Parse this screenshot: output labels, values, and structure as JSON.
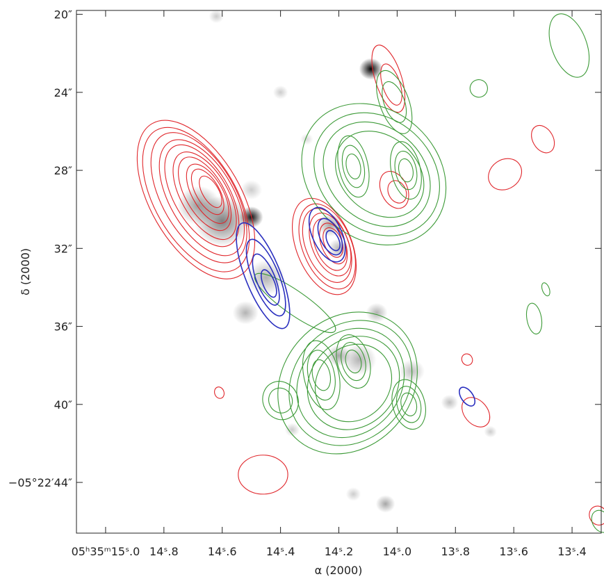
{
  "chart_data": {
    "type": "contour",
    "xlabel": "α (2000)",
    "ylabel": "δ (2000)",
    "x_axis": {
      "unit": "seconds of RA",
      "range": [
        15.1,
        13.3
      ],
      "ticks": [
        {
          "value": 15.0,
          "label": "05ʰ35ᵐ15ˢ.0"
        },
        {
          "value": 14.8,
          "label": "14ˢ.8"
        },
        {
          "value": 14.6,
          "label": "14ˢ.6"
        },
        {
          "value": 14.4,
          "label": "14ˢ.4"
        },
        {
          "value": 14.2,
          "label": "14ˢ.2"
        },
        {
          "value": 14.0,
          "label": "14ˢ.0"
        },
        {
          "value": 13.8,
          "label": "13ˢ.8"
        },
        {
          "value": 13.6,
          "label": "13ˢ.6"
        },
        {
          "value": 13.4,
          "label": "13ˢ.4"
        }
      ]
    },
    "y_axis": {
      "unit": "arcsec offset in Dec",
      "range": [
        46.6,
        19.8
      ],
      "ticks": [
        {
          "value": 20,
          "label": "20″"
        },
        {
          "value": 24,
          "label": "24″"
        },
        {
          "value": 28,
          "label": "28″"
        },
        {
          "value": 32,
          "label": "32″"
        },
        {
          "value": 36,
          "label": "36″"
        },
        {
          "value": 40,
          "label": "40″"
        },
        {
          "value": 44,
          "label": "−05°22′44″"
        }
      ]
    },
    "colors": {
      "red": "#e0262b",
      "green": "#3c9a37",
      "blue": "#2a2fbf",
      "grayscale": "#000000"
    },
    "grayscale_blobs": [
      {
        "x": 14.09,
        "y": 22.8,
        "r": 0.55,
        "intensity": 1.0
      },
      {
        "x": 14.5,
        "y": 30.4,
        "r": 0.55,
        "intensity": 0.95
      },
      {
        "x": 14.6,
        "y": 30.6,
        "r": 1.3,
        "intensity": 0.5
      },
      {
        "x": 14.68,
        "y": 29.8,
        "r": 1.0,
        "intensity": 0.4
      },
      {
        "x": 14.45,
        "y": 33.5,
        "r": 0.9,
        "intensity": 0.3
      },
      {
        "x": 14.52,
        "y": 35.3,
        "r": 0.6,
        "intensity": 0.3
      },
      {
        "x": 14.23,
        "y": 30.8,
        "r": 0.6,
        "intensity": 0.35
      },
      {
        "x": 14.2,
        "y": 32.0,
        "r": 0.5,
        "intensity": 0.3
      },
      {
        "x": 14.13,
        "y": 37.7,
        "r": 0.8,
        "intensity": 0.3
      },
      {
        "x": 14.2,
        "y": 37.5,
        "r": 0.55,
        "intensity": 0.35
      },
      {
        "x": 13.95,
        "y": 38.3,
        "r": 0.6,
        "intensity": 0.25
      },
      {
        "x": 13.82,
        "y": 39.9,
        "r": 0.4,
        "intensity": 0.25
      },
      {
        "x": 14.4,
        "y": 24.0,
        "r": 0.35,
        "intensity": 0.2
      },
      {
        "x": 14.5,
        "y": 29.0,
        "r": 0.5,
        "intensity": 0.2
      },
      {
        "x": 14.04,
        "y": 45.1,
        "r": 0.45,
        "intensity": 0.35
      },
      {
        "x": 14.15,
        "y": 44.6,
        "r": 0.35,
        "intensity": 0.2
      },
      {
        "x": 14.62,
        "y": 20.1,
        "r": 0.35,
        "intensity": 0.2
      },
      {
        "x": 13.68,
        "y": 41.4,
        "r": 0.3,
        "intensity": 0.2
      },
      {
        "x": 14.36,
        "y": 41.3,
        "r": 0.35,
        "intensity": 0.2
      },
      {
        "x": 14.31,
        "y": 26.4,
        "r": 0.3,
        "intensity": 0.15
      },
      {
        "x": 14.07,
        "y": 35.3,
        "r": 0.5,
        "intensity": 0.3
      }
    ],
    "series": [
      {
        "color": "red",
        "groups": [
          {
            "levels": [
              {
                "cx": 14.69,
                "cy": 29.5,
                "rx": 0.155,
                "ry": 4.5,
                "rot": -30
              },
              {
                "cx": 14.69,
                "cy": 29.5,
                "rx": 0.14,
                "ry": 4.1,
                "rot": -30
              },
              {
                "cx": 14.68,
                "cy": 29.4,
                "rx": 0.125,
                "ry": 3.7,
                "rot": -30
              },
              {
                "cx": 14.67,
                "cy": 29.4,
                "rx": 0.11,
                "ry": 3.3,
                "rot": -30
              },
              {
                "cx": 14.67,
                "cy": 29.3,
                "rx": 0.095,
                "ry": 2.9,
                "rot": -30
              },
              {
                "cx": 14.66,
                "cy": 29.3,
                "rx": 0.08,
                "ry": 2.5,
                "rot": -30
              },
              {
                "cx": 14.66,
                "cy": 29.2,
                "rx": 0.066,
                "ry": 2.1,
                "rot": -30
              },
              {
                "cx": 14.65,
                "cy": 29.2,
                "rx": 0.052,
                "ry": 1.7,
                "rot": -30
              },
              {
                "cx": 14.65,
                "cy": 29.1,
                "rx": 0.04,
                "ry": 1.3,
                "rot": -30
              },
              {
                "cx": 14.64,
                "cy": 29.1,
                "rx": 0.028,
                "ry": 0.9,
                "rot": -30
              }
            ]
          },
          {
            "levels": [
              {
                "cx": 14.25,
                "cy": 31.9,
                "rx": 0.095,
                "ry": 2.6,
                "rot": -22
              },
              {
                "cx": 14.24,
                "cy": 31.9,
                "rx": 0.084,
                "ry": 2.3,
                "rot": -22
              },
              {
                "cx": 14.24,
                "cy": 31.85,
                "rx": 0.073,
                "ry": 2.0,
                "rot": -22
              },
              {
                "cx": 14.23,
                "cy": 31.8,
                "rx": 0.062,
                "ry": 1.7,
                "rot": -22
              },
              {
                "cx": 14.23,
                "cy": 31.8,
                "rx": 0.051,
                "ry": 1.4,
                "rot": -22
              },
              {
                "cx": 14.22,
                "cy": 31.75,
                "rx": 0.04,
                "ry": 1.1,
                "rot": -22
              },
              {
                "cx": 14.22,
                "cy": 31.7,
                "rx": 0.03,
                "ry": 0.8,
                "rot": -22
              }
            ]
          },
          {
            "levels": [
              {
                "cx": 14.03,
                "cy": 23.3,
                "rx": 0.045,
                "ry": 1.8,
                "rot": -18
              },
              {
                "cx": 14.02,
                "cy": 23.6,
                "rx": 0.03,
                "ry": 1.1,
                "rot": -18
              }
            ]
          },
          {
            "levels": [
              {
                "cx": 14.01,
                "cy": 29.0,
                "rx": 0.045,
                "ry": 1.0,
                "rot": -25
              },
              {
                "cx": 14.0,
                "cy": 29.1,
                "rx": 0.03,
                "ry": 0.6,
                "rot": -25
              }
            ]
          },
          {
            "levels": [
              {
                "cx": 13.63,
                "cy": 28.2,
                "rx": 0.06,
                "ry": 0.75,
                "rot": -35
              }
            ]
          },
          {
            "levels": [
              {
                "cx": 13.5,
                "cy": 26.4,
                "rx": 0.035,
                "ry": 0.75,
                "rot": -30
              }
            ]
          },
          {
            "levels": [
              {
                "cx": 13.73,
                "cy": 40.4,
                "rx": 0.04,
                "ry": 0.85,
                "rot": -40
              }
            ]
          },
          {
            "levels": [
              {
                "cx": 13.76,
                "cy": 37.7,
                "rx": 0.018,
                "ry": 0.3,
                "rot": -30
              }
            ]
          },
          {
            "levels": [
              {
                "cx": 14.61,
                "cy": 39.4,
                "rx": 0.016,
                "ry": 0.3,
                "rot": -20
              }
            ]
          },
          {
            "levels": [
              {
                "cx": 14.46,
                "cy": 43.6,
                "rx": 0.085,
                "ry": 1.0,
                "rot": 0
              }
            ]
          },
          {
            "levels": [
              {
                "cx": 13.31,
                "cy": 45.7,
                "rx": 0.03,
                "ry": 0.5,
                "rot": -30
              }
            ]
          }
        ]
      },
      {
        "color": "green",
        "groups": [
          {
            "levels": [
              {
                "cx": 14.17,
                "cy": 38.9,
                "rx": 0.26,
                "ry": 3.3,
                "rot": -48
              },
              {
                "cx": 14.16,
                "cy": 38.9,
                "rx": 0.23,
                "ry": 2.9,
                "rot": -48
              },
              {
                "cx": 14.16,
                "cy": 38.9,
                "rx": 0.2,
                "ry": 2.55,
                "rot": -48
              },
              {
                "cx": 14.15,
                "cy": 38.9,
                "rx": 0.17,
                "ry": 2.2,
                "rot": -48
              },
              {
                "cx": 14.15,
                "cy": 38.9,
                "rx": 0.14,
                "ry": 1.85,
                "rot": -48
              }
            ]
          },
          {
            "levels": [
              {
                "cx": 14.26,
                "cy": 38.5,
                "rx": 0.06,
                "ry": 1.8,
                "rot": -12
              },
              {
                "cx": 14.26,
                "cy": 38.5,
                "rx": 0.045,
                "ry": 1.3,
                "rot": -12
              },
              {
                "cx": 14.26,
                "cy": 38.5,
                "rx": 0.03,
                "ry": 0.8,
                "rot": -12
              }
            ]
          },
          {
            "levels": [
              {
                "cx": 14.15,
                "cy": 37.8,
                "rx": 0.055,
                "ry": 1.4,
                "rot": -15
              },
              {
                "cx": 14.15,
                "cy": 37.8,
                "rx": 0.04,
                "ry": 1.0,
                "rot": -15
              },
              {
                "cx": 14.15,
                "cy": 37.8,
                "rx": 0.026,
                "ry": 0.6,
                "rot": -15
              }
            ]
          },
          {
            "levels": [
              {
                "cx": 13.96,
                "cy": 40.0,
                "rx": 0.055,
                "ry": 1.3,
                "rot": -15
              },
              {
                "cx": 13.96,
                "cy": 40.0,
                "rx": 0.04,
                "ry": 0.95,
                "rot": -15
              },
              {
                "cx": 13.96,
                "cy": 40.0,
                "rx": 0.026,
                "ry": 0.6,
                "rot": -15
              }
            ]
          },
          {
            "levels": [
              {
                "cx": 14.4,
                "cy": 39.8,
                "rx": 0.06,
                "ry": 1.0,
                "rot": -25
              },
              {
                "cx": 14.4,
                "cy": 39.8,
                "rx": 0.04,
                "ry": 0.65,
                "rot": -25
              }
            ]
          },
          {
            "levels": [
              {
                "cx": 14.08,
                "cy": 28.2,
                "rx": 0.22,
                "ry": 4.0,
                "rot": -48
              },
              {
                "cx": 14.07,
                "cy": 28.2,
                "rx": 0.19,
                "ry": 3.5,
                "rot": -48
              },
              {
                "cx": 14.07,
                "cy": 28.2,
                "rx": 0.16,
                "ry": 3.0,
                "rot": -48
              },
              {
                "cx": 14.06,
                "cy": 28.2,
                "rx": 0.13,
                "ry": 2.5,
                "rot": -48
              }
            ]
          },
          {
            "levels": [
              {
                "cx": 14.15,
                "cy": 27.8,
                "rx": 0.05,
                "ry": 1.6,
                "rot": -12
              },
              {
                "cx": 14.15,
                "cy": 27.8,
                "rx": 0.036,
                "ry": 1.1,
                "rot": -12
              },
              {
                "cx": 14.15,
                "cy": 27.8,
                "rx": 0.024,
                "ry": 0.65,
                "rot": -12
              }
            ]
          },
          {
            "levels": [
              {
                "cx": 13.97,
                "cy": 28.0,
                "rx": 0.05,
                "ry": 1.5,
                "rot": -12
              },
              {
                "cx": 13.97,
                "cy": 28.0,
                "rx": 0.036,
                "ry": 1.0,
                "rot": -12
              },
              {
                "cx": 13.97,
                "cy": 28.0,
                "rx": 0.024,
                "ry": 0.6,
                "rot": -12
              }
            ]
          },
          {
            "levels": [
              {
                "cx": 14.01,
                "cy": 24.5,
                "rx": 0.05,
                "ry": 1.7,
                "rot": -20
              },
              {
                "cx": 14.01,
                "cy": 24.5,
                "rx": 0.035,
                "ry": 1.1,
                "rot": -20
              }
            ]
          },
          {
            "levels": [
              {
                "cx": 14.35,
                "cy": 34.8,
                "rx": 0.04,
                "ry": 2.5,
                "rot": -55
              }
            ]
          },
          {
            "levels": [
              {
                "cx": 13.41,
                "cy": 21.6,
                "rx": 0.06,
                "ry": 1.7,
                "rot": -20
              }
            ]
          },
          {
            "levels": [
              {
                "cx": 13.72,
                "cy": 23.8,
                "rx": 0.03,
                "ry": 0.45,
                "rot": -20
              }
            ]
          },
          {
            "levels": [
              {
                "cx": 13.53,
                "cy": 35.6,
                "rx": 0.025,
                "ry": 0.8,
                "rot": -10
              }
            ]
          },
          {
            "levels": [
              {
                "cx": 13.49,
                "cy": 34.1,
                "rx": 0.012,
                "ry": 0.35,
                "rot": -20
              }
            ]
          },
          {
            "levels": [
              {
                "cx": 13.3,
                "cy": 46.0,
                "rx": 0.03,
                "ry": 0.6,
                "rot": -30
              }
            ]
          }
        ]
      },
      {
        "color": "blue",
        "groups": [
          {
            "levels": [
              {
                "cx": 14.46,
                "cy": 33.4,
                "rx": 0.06,
                "ry": 2.9,
                "rot": -22
              },
              {
                "cx": 14.45,
                "cy": 33.5,
                "rx": 0.045,
                "ry": 2.1,
                "rot": -22
              },
              {
                "cx": 14.45,
                "cy": 33.6,
                "rx": 0.032,
                "ry": 1.4,
                "rot": -22
              },
              {
                "cx": 14.44,
                "cy": 33.8,
                "rx": 0.02,
                "ry": 0.75,
                "rot": -22
              }
            ]
          },
          {
            "levels": [
              {
                "cx": 14.24,
                "cy": 31.3,
                "rx": 0.05,
                "ry": 1.5,
                "rot": -25
              },
              {
                "cx": 14.23,
                "cy": 31.4,
                "rx": 0.034,
                "ry": 1.0,
                "rot": -25
              },
              {
                "cx": 14.22,
                "cy": 31.6,
                "rx": 0.02,
                "ry": 0.55,
                "rot": -25
              }
            ]
          },
          {
            "levels": [
              {
                "cx": 13.76,
                "cy": 39.6,
                "rx": 0.02,
                "ry": 0.55,
                "rot": -35
              }
            ]
          }
        ]
      }
    ]
  }
}
